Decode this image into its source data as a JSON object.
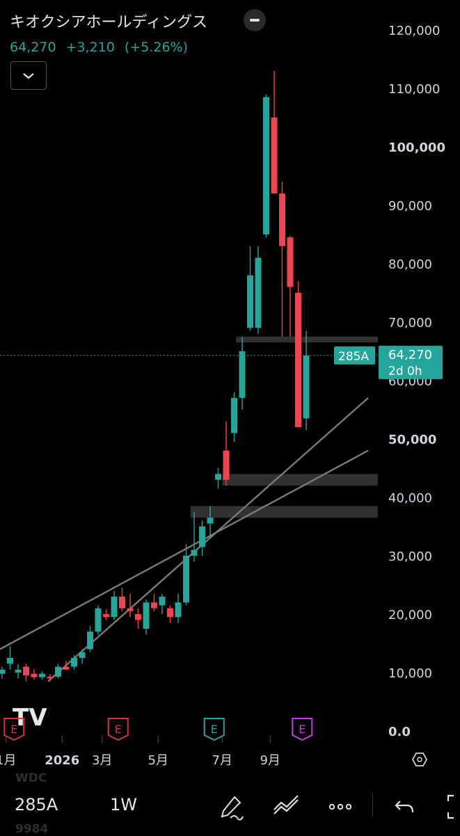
{
  "header": {
    "title": "キオクシアホールディングス",
    "price": "64,270",
    "change": "+3,210",
    "change_pct": "(+5.26%)"
  },
  "colors": {
    "up": "#26a69a",
    "down": "#f0444f",
    "line": "#7a7a7a",
    "zone": "#3a3a3a",
    "earnings_teal": "#26a69a",
    "earnings_red": "#d0343d",
    "earnings_purple": "#c040e0"
  },
  "chart_data": {
    "type": "candlestick",
    "interval": "1W",
    "ylim": [
      0,
      120000
    ],
    "y_ticks": [
      "0.0",
      "10,000",
      "20,000",
      "30,000",
      "40,000",
      "50,000",
      "60,000",
      "70,000",
      "80,000",
      "90,000",
      "100,000",
      "110,000",
      "120,000"
    ],
    "x_ticks": [
      {
        "label": "1月",
        "week": 0.5
      },
      {
        "label": "2026",
        "week": 7.5
      },
      {
        "label": "3月",
        "week": 12.5
      },
      {
        "label": "5月",
        "week": 19.5
      },
      {
        "label": "7月",
        "week": 27.5
      },
      {
        "label": "9月",
        "week": 33.5
      }
    ],
    "candles": [
      {
        "w": 0,
        "o": 9800,
        "h": 11000,
        "l": 9000,
        "c": 10500
      },
      {
        "w": 1,
        "o": 11500,
        "h": 14500,
        "l": 10500,
        "c": 12500
      },
      {
        "w": 2,
        "o": 10000,
        "h": 11500,
        "l": 9000,
        "c": 10500
      },
      {
        "w": 3,
        "o": 11000,
        "h": 11500,
        "l": 8500,
        "c": 9500
      },
      {
        "w": 4,
        "o": 9800,
        "h": 10500,
        "l": 8800,
        "c": 9200
      },
      {
        "w": 5,
        "o": 9200,
        "h": 10200,
        "l": 8800,
        "c": 9800
      },
      {
        "w": 6,
        "o": 9300,
        "h": 9700,
        "l": 8500,
        "c": 9000
      },
      {
        "w": 7,
        "o": 9300,
        "h": 11500,
        "l": 9000,
        "c": 11000
      },
      {
        "w": 8,
        "o": 11000,
        "h": 12000,
        "l": 10500,
        "c": 10500
      },
      {
        "w": 9,
        "o": 11000,
        "h": 13000,
        "l": 10500,
        "c": 12500
      },
      {
        "w": 10,
        "o": 12500,
        "h": 14000,
        "l": 11500,
        "c": 13500
      },
      {
        "w": 11,
        "o": 14000,
        "h": 18000,
        "l": 13500,
        "c": 17000
      },
      {
        "w": 12,
        "o": 17000,
        "h": 21500,
        "l": 16500,
        "c": 21000
      },
      {
        "w": 13,
        "o": 20000,
        "h": 20800,
        "l": 19000,
        "c": 19500
      },
      {
        "w": 14,
        "o": 19500,
        "h": 24000,
        "l": 19000,
        "c": 23000
      },
      {
        "w": 15,
        "o": 23000,
        "h": 24500,
        "l": 20500,
        "c": 21000
      },
      {
        "w": 16,
        "o": 21000,
        "h": 23500,
        "l": 19500,
        "c": 20500
      },
      {
        "w": 17,
        "o": 20000,
        "h": 21000,
        "l": 17500,
        "c": 19000
      },
      {
        "w": 18,
        "o": 17500,
        "h": 22500,
        "l": 16500,
        "c": 22000
      },
      {
        "w": 19,
        "o": 22000,
        "h": 23500,
        "l": 20500,
        "c": 21000
      },
      {
        "w": 20,
        "o": 21500,
        "h": 23500,
        "l": 20000,
        "c": 23000
      },
      {
        "w": 21,
        "o": 21000,
        "h": 21500,
        "l": 18500,
        "c": 19500
      },
      {
        "w": 22,
        "o": 19500,
        "h": 23500,
        "l": 18500,
        "c": 22000
      },
      {
        "w": 23,
        "o": 22000,
        "h": 32000,
        "l": 21500,
        "c": 30000
      },
      {
        "w": 24,
        "o": 30000,
        "h": 37500,
        "l": 29000,
        "c": 31000
      },
      {
        "w": 25,
        "o": 31500,
        "h": 36000,
        "l": 30000,
        "c": 35000
      },
      {
        "w": 26,
        "o": 35500,
        "h": 38500,
        "l": 33000,
        "c": 36500
      },
      {
        "w": 27,
        "o": 43000,
        "h": 45000,
        "l": 41500,
        "c": 44000
      },
      {
        "w": 28,
        "o": 48000,
        "h": 53000,
        "l": 42000,
        "c": 43000
      },
      {
        "w": 29,
        "o": 51000,
        "h": 58000,
        "l": 49500,
        "c": 57000
      },
      {
        "w": 30,
        "o": 57000,
        "h": 67500,
        "l": 55000,
        "c": 65000
      },
      {
        "w": 31,
        "o": 69000,
        "h": 83000,
        "l": 68500,
        "c": 78000
      },
      {
        "w": 32,
        "o": 69000,
        "h": 83000,
        "l": 68000,
        "c": 81000
      },
      {
        "w": 33,
        "o": 85000,
        "h": 109000,
        "l": 84500,
        "c": 108500
      },
      {
        "w": 34,
        "o": 105000,
        "h": 113000,
        "l": 92000,
        "c": 92000
      },
      {
        "w": 35,
        "o": 92000,
        "h": 94000,
        "l": 67500,
        "c": 83000
      },
      {
        "w": 36,
        "o": 84500,
        "h": 84800,
        "l": 67500,
        "c": 76000
      },
      {
        "w": 37,
        "o": 75000,
        "h": 77000,
        "l": 52000,
        "c": 52000
      },
      {
        "w": 38,
        "o": 53500,
        "h": 68500,
        "l": 51500,
        "c": 64270
      }
    ],
    "trend_lines": [
      {
        "from": {
          "w": 0,
          "y": 14000
        },
        "to": {
          "w": 46,
          "y": 48000
        }
      },
      {
        "from": {
          "w": 6,
          "y": 8500
        },
        "to": {
          "w": 46,
          "y": 57000
        }
      }
    ],
    "zones": [
      {
        "from_w": 29.5,
        "y1": 66500,
        "y2": 67500
      },
      {
        "from_w": 27.8,
        "y1": 42000,
        "y2": 44000
      },
      {
        "from_w": 23.8,
        "y1": 36500,
        "y2": 38500
      }
    ],
    "last_price": 64270,
    "last_price_label": "64,270",
    "countdown": "2d 0h",
    "symbol_badge": "285A",
    "earnings_markers": [
      {
        "w": 1.5,
        "label": "E",
        "color": "#d0343d"
      },
      {
        "w": 14.5,
        "label": "E",
        "color": "#d0343d"
      },
      {
        "w": 26.5,
        "label": "E",
        "color": "#26a69a"
      },
      {
        "w": 37.5,
        "label": "E",
        "color": "#c040e0"
      }
    ]
  },
  "watermark": "TV",
  "toolbar": {
    "symbol": "285A",
    "interval": "1W",
    "ghost_prev": "WDC",
    "ghost_next": "9984"
  }
}
